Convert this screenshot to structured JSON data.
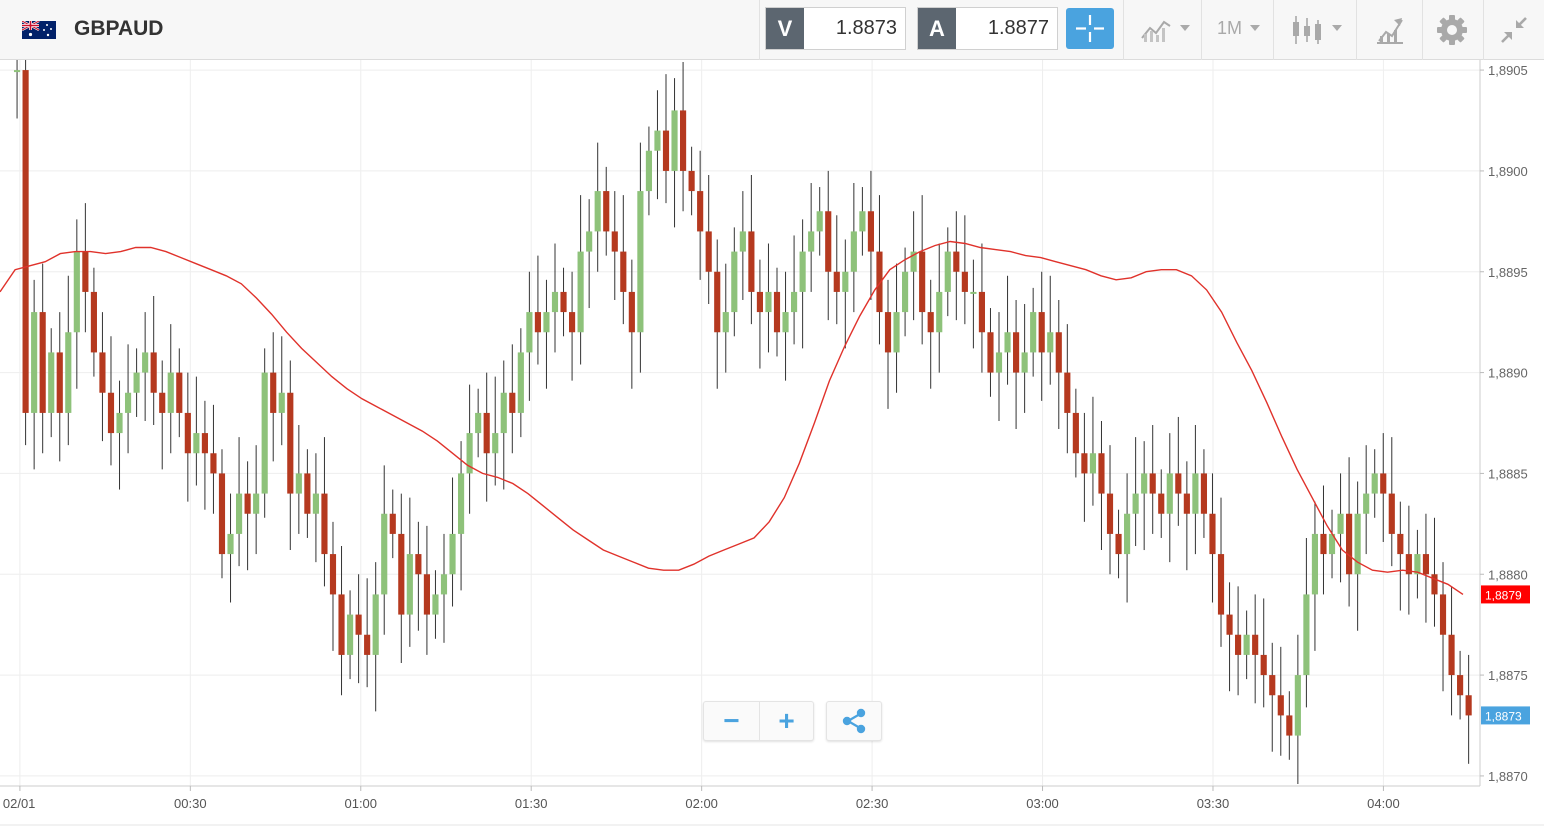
{
  "header": {
    "symbol": "GBPAUD",
    "flag_icon": "gb-au-flag-icon",
    "sell": {
      "label": "V",
      "value": "1.8873"
    },
    "buy": {
      "label": "A",
      "value": "1.8877"
    },
    "timeframe": "1M",
    "icons": [
      "crosshair-icon",
      "chart-type-line-icon",
      "candlestick-icon",
      "drawing-tool-icon",
      "gear-icon",
      "collapse-icon"
    ]
  },
  "controls": {
    "zoom_out": "−",
    "zoom_in": "+",
    "share_icon": "share-icon"
  },
  "colors": {
    "up": "#8ec27a",
    "down": "#b5391f",
    "ma": "#e0322b",
    "current_price_bg": "#4aa3df",
    "ma_price_bg": "#ff0000"
  },
  "chart_data": {
    "type": "candlestick",
    "y_ticks": [
      "1,8870",
      "1,8875",
      "1,8880",
      "1,8885",
      "1,8890",
      "1,8895",
      "1,8900",
      "1,8905"
    ],
    "x_ticks": [
      {
        "label": "02/01",
        "minute": 0
      },
      {
        "label": "00:30",
        "minute": 30
      },
      {
        "label": "01:00",
        "minute": 60
      },
      {
        "label": "01:30",
        "minute": 90
      },
      {
        "label": "02:00",
        "minute": 120
      },
      {
        "label": "02:30",
        "minute": 150
      },
      {
        "label": "03:00",
        "minute": 180
      },
      {
        "label": "03:30",
        "minute": 210
      },
      {
        "label": "04:00",
        "minute": 240
      }
    ],
    "y_range": [
      1.88695,
      1.89055
    ],
    "x_range_minutes": [
      -3.5,
      257
    ],
    "grid": true,
    "current_price": {
      "value": 1.8873,
      "label": "1,8873"
    },
    "ma_price": {
      "value": 1.8879,
      "label": "1,8879"
    },
    "closes": [
      1.8905,
      1.8905,
      1.8888,
      1.8893,
      1.8888,
      1.8891,
      1.8888,
      1.8892,
      1.8896,
      1.8894,
      1.8891,
      1.8889,
      1.8887,
      1.8888,
      1.8889,
      1.889,
      1.8891,
      1.8889,
      1.8888,
      1.889,
      1.8888,
      1.8886,
      1.8887,
      1.8886,
      1.8885,
      1.8881,
      1.8882,
      1.8884,
      1.8883,
      1.8884,
      1.889,
      1.8888,
      1.8889,
      1.8884,
      1.8885,
      1.8883,
      1.8884,
      1.8881,
      1.8879,
      1.8876,
      1.8878,
      1.8877,
      1.8876,
      1.8879,
      1.8883,
      1.8882,
      1.8878,
      1.8881,
      1.888,
      1.8878,
      1.8879,
      1.888,
      1.8882,
      1.8885,
      1.8887,
      1.8888,
      1.8886,
      1.8887,
      1.8889,
      1.8888,
      1.8891,
      1.8893,
      1.8892,
      1.8893,
      1.8894,
      1.8893,
      1.8892,
      1.8896,
      1.8897,
      1.8899,
      1.8897,
      1.8896,
      1.8894,
      1.8892,
      1.8899,
      1.8901,
      1.8902,
      1.89,
      1.8903,
      1.89,
      1.8899,
      1.8897,
      1.8895,
      1.8892,
      1.8893,
      1.8896,
      1.8897,
      1.8894,
      1.8893,
      1.8894,
      1.8892,
      1.8893,
      1.8894,
      1.8896,
      1.8897,
      1.8898,
      1.8895,
      1.8894,
      1.8895,
      1.8897,
      1.8898,
      1.8896,
      1.8893,
      1.8891,
      1.8893,
      1.8895,
      1.8896,
      1.8893,
      1.8892,
      1.8894,
      1.8896,
      1.8895,
      1.8894,
      1.8894,
      1.8892,
      1.889,
      1.8891,
      1.8892,
      1.889,
      1.8891,
      1.8893,
      1.8891,
      1.8892,
      1.889,
      1.8888,
      1.8886,
      1.8885,
      1.8886,
      1.8884,
      1.8882,
      1.8881,
      1.8883,
      1.8884,
      1.8885,
      1.8884,
      1.8883,
      1.8885,
      1.8884,
      1.8883,
      1.8885,
      1.8883,
      1.8881,
      1.8878,
      1.8877,
      1.8876,
      1.8877,
      1.8876,
      1.8875,
      1.8874,
      1.8873,
      1.8872,
      1.8875,
      1.8879,
      1.8882,
      1.8881,
      1.8882,
      1.8883,
      1.888,
      1.8883,
      1.8884,
      1.8885,
      1.8884,
      1.8882,
      1.8881,
      1.888,
      1.8881,
      1.888,
      1.8879,
      1.8877,
      1.8875,
      1.8874,
      1.8873
    ],
    "ma": [
      1.8894,
      1.88951,
      1.88953,
      1.88955,
      1.88959,
      1.8896,
      1.8896,
      1.88959,
      1.8896,
      1.88962,
      1.88962,
      1.8896,
      1.88957,
      1.88954,
      1.88951,
      1.88948,
      1.88944,
      1.88937,
      1.88929,
      1.8892,
      1.88912,
      1.88905,
      1.88898,
      1.88892,
      1.88887,
      1.88883,
      1.88879,
      1.88875,
      1.88871,
      1.88866,
      1.8886,
      1.88854,
      1.8885,
      1.88848,
      1.88845,
      1.8884,
      1.88834,
      1.88828,
      1.88822,
      1.88817,
      1.88812,
      1.88809,
      1.88806,
      1.88803,
      1.88802,
      1.88802,
      1.88805,
      1.88809,
      1.88812,
      1.88815,
      1.88818,
      1.88826,
      1.88838,
      1.88855,
      1.88875,
      1.88896,
      1.88913,
      1.88928,
      1.88941,
      1.88951,
      1.88956,
      1.8896,
      1.88963,
      1.88965,
      1.88964,
      1.88962,
      1.88961,
      1.8896,
      1.88958,
      1.88957,
      1.88955,
      1.88953,
      1.88951,
      1.88948,
      1.88946,
      1.88947,
      1.8895,
      1.88951,
      1.88951,
      1.88948,
      1.88941,
      1.8893,
      1.88915,
      1.88901,
      1.88885,
      1.88868,
      1.88852,
      1.88838,
      1.88824,
      1.88812,
      1.88806,
      1.88802,
      1.88801,
      1.88802,
      1.88801,
      1.88798,
      1.88795,
      1.8879
    ]
  }
}
